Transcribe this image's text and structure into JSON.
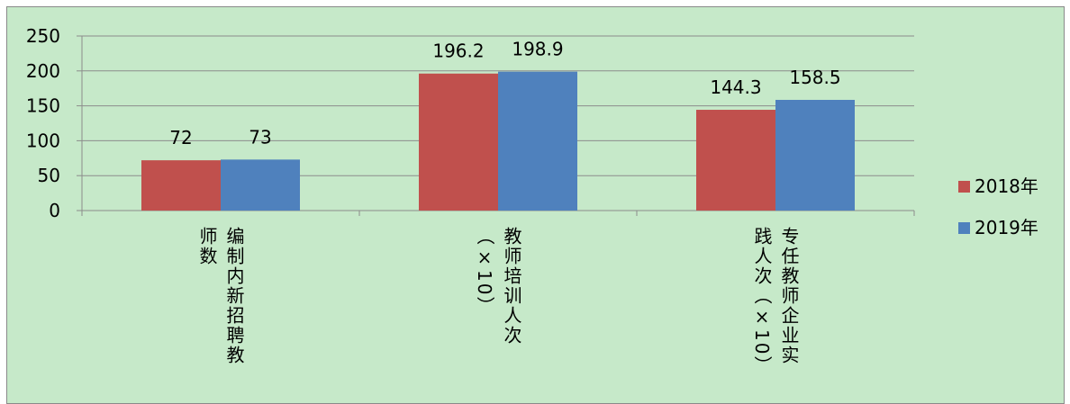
{
  "chart_data": {
    "type": "bar",
    "categories": [
      "编制内新招聘教师数",
      "教师培训人次（×10）",
      "专任教师企业实践人次（×10）"
    ],
    "category_display_columns": [
      [
        "编制内新招聘教",
        "师数"
      ],
      [
        "教师培训人次",
        "（×10）"
      ],
      [
        "专任教师企业实",
        "践人次（×10）"
      ]
    ],
    "series": [
      {
        "name": "2018年",
        "values": [
          72,
          196.2,
          144.3
        ],
        "color": "#c0504d"
      },
      {
        "name": "2019年",
        "values": [
          73,
          198.9,
          158.5
        ],
        "color": "#4f81bd"
      }
    ],
    "yticks": [
      "0",
      "50",
      "100",
      "150",
      "200",
      "250"
    ],
    "ylim": [
      0,
      250
    ],
    "grid": true,
    "legend_position": "right",
    "title": "",
    "xlabel": "",
    "ylabel": ""
  }
}
